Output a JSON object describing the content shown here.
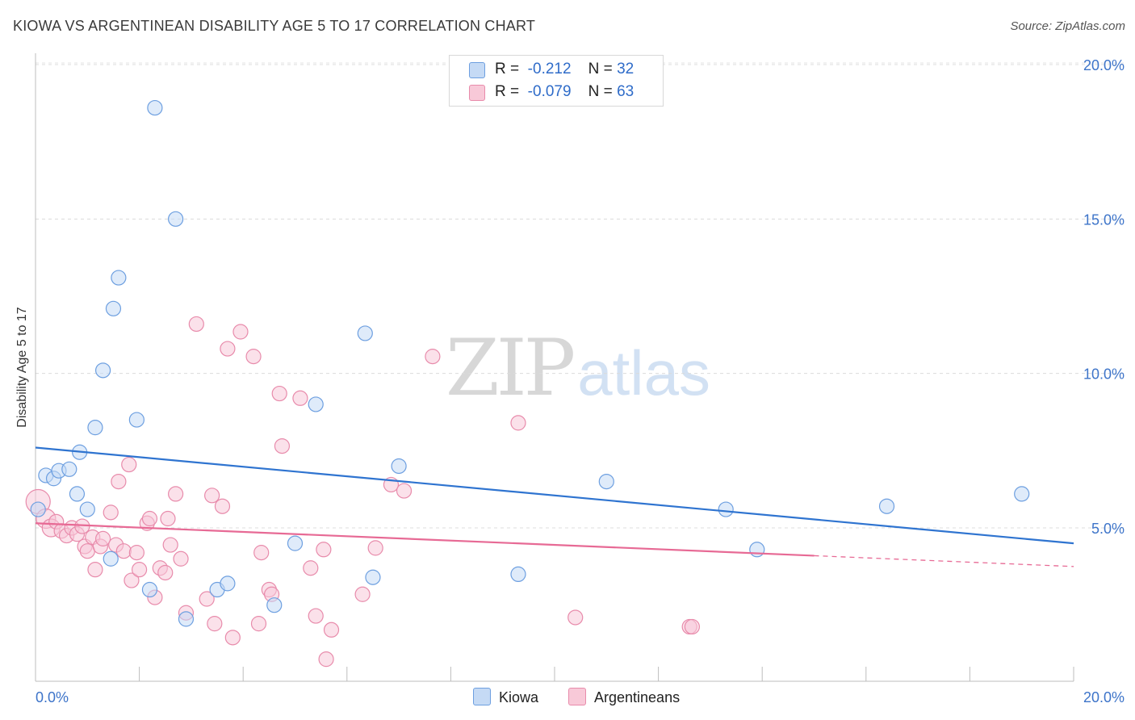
{
  "chart_data": {
    "type": "scatter",
    "title": "KIOWA VS ARGENTINEAN DISABILITY AGE 5 TO 17 CORRELATION CHART",
    "source": "Source: ZipAtlas.com",
    "ylabel": "Disability Age 5 to 17",
    "xlabel": "",
    "xlim": [
      0,
      20
    ],
    "ylim": [
      0,
      20.5
    ],
    "x_tick_labels": [
      "0.0%",
      "20.0%"
    ],
    "y_tick_labels": [
      {
        "value": 5,
        "label": "5.0%"
      },
      {
        "value": 10,
        "label": "10.0%"
      },
      {
        "value": 15,
        "label": "15.0%"
      },
      {
        "value": 20,
        "label": "20.0%"
      }
    ],
    "watermark": {
      "zip": "ZIP",
      "atlas": "atlas"
    },
    "legend": [
      {
        "r_label": "R =",
        "r_value": "-0.212",
        "n_label": "N =",
        "n_value": "32"
      },
      {
        "r_label": "R =",
        "r_value": "-0.079",
        "n_label": "N =",
        "n_value": "63"
      }
    ],
    "series": [
      {
        "name": "Kiowa",
        "color": "#6d9fe0",
        "fill": "#c5daf5",
        "line_color": "#2f74d0",
        "trend": {
          "x0": 0,
          "y0": 7.6,
          "x1": 20,
          "y1": 4.5,
          "solid_until": 20
        },
        "points": [
          [
            0.05,
            5.6,
            9
          ],
          [
            0.2,
            6.7,
            9
          ],
          [
            0.35,
            6.6,
            9
          ],
          [
            0.45,
            6.85,
            9
          ],
          [
            0.65,
            6.9,
            9
          ],
          [
            0.8,
            6.1,
            9
          ],
          [
            0.85,
            7.45,
            9
          ],
          [
            1.0,
            5.6,
            9
          ],
          [
            1.15,
            8.25,
            9
          ],
          [
            1.3,
            10.1,
            9
          ],
          [
            1.45,
            4.0,
            9
          ],
          [
            1.5,
            12.1,
            9
          ],
          [
            1.6,
            13.1,
            9
          ],
          [
            1.95,
            8.5,
            9
          ],
          [
            2.2,
            3.0,
            9
          ],
          [
            2.3,
            18.6,
            9
          ],
          [
            2.7,
            15.0,
            9
          ],
          [
            2.9,
            2.05,
            9
          ],
          [
            3.5,
            3.0,
            9
          ],
          [
            3.7,
            3.2,
            9
          ],
          [
            4.6,
            2.5,
            9
          ],
          [
            5.0,
            4.5,
            9
          ],
          [
            5.4,
            9.0,
            9
          ],
          [
            6.35,
            11.3,
            9
          ],
          [
            6.5,
            3.4,
            9
          ],
          [
            7.0,
            7.0,
            9
          ],
          [
            9.3,
            3.5,
            9
          ],
          [
            11.0,
            6.5,
            9
          ],
          [
            13.3,
            5.6,
            9
          ],
          [
            13.9,
            4.3,
            9
          ],
          [
            16.4,
            5.7,
            9
          ],
          [
            19.0,
            6.1,
            9
          ]
        ]
      },
      {
        "name": "Argentineans",
        "color": "#e88bab",
        "fill": "#f8c9d8",
        "line_color": "#e76a95",
        "trend": {
          "x0": 0,
          "y0": 5.15,
          "x1": 20,
          "y1": 3.75,
          "solid_until": 15
        },
        "points": [
          [
            0.05,
            5.85,
            15
          ],
          [
            0.2,
            5.3,
            12
          ],
          [
            0.3,
            5.0,
            11
          ],
          [
            0.4,
            5.2,
            9
          ],
          [
            0.5,
            4.9,
            9
          ],
          [
            0.6,
            4.75,
            9
          ],
          [
            0.7,
            5.0,
            9
          ],
          [
            0.8,
            4.8,
            9
          ],
          [
            0.9,
            5.05,
            9
          ],
          [
            0.95,
            4.4,
            9
          ],
          [
            1.0,
            4.25,
            9
          ],
          [
            1.1,
            4.7,
            9
          ],
          [
            1.15,
            3.65,
            9
          ],
          [
            1.25,
            4.4,
            9
          ],
          [
            1.3,
            4.65,
            9
          ],
          [
            1.45,
            5.5,
            9
          ],
          [
            1.55,
            4.45,
            9
          ],
          [
            1.6,
            6.5,
            9
          ],
          [
            1.7,
            4.25,
            9
          ],
          [
            1.8,
            7.05,
            9
          ],
          [
            1.85,
            3.3,
            9
          ],
          [
            1.95,
            4.2,
            9
          ],
          [
            2.0,
            3.65,
            9
          ],
          [
            2.15,
            5.15,
            9
          ],
          [
            2.2,
            5.3,
            9
          ],
          [
            2.3,
            2.75,
            9
          ],
          [
            2.4,
            3.7,
            9
          ],
          [
            2.5,
            3.55,
            9
          ],
          [
            2.55,
            5.3,
            9
          ],
          [
            2.6,
            4.45,
            9
          ],
          [
            2.7,
            6.1,
            9
          ],
          [
            2.8,
            4.0,
            9
          ],
          [
            2.9,
            2.25,
            9
          ],
          [
            3.1,
            11.6,
            9
          ],
          [
            3.3,
            2.7,
            9
          ],
          [
            3.4,
            6.05,
            9
          ],
          [
            3.45,
            1.9,
            9
          ],
          [
            3.6,
            5.7,
            9
          ],
          [
            3.7,
            10.8,
            9
          ],
          [
            3.8,
            1.45,
            9
          ],
          [
            3.95,
            11.35,
            9
          ],
          [
            4.2,
            10.55,
            9
          ],
          [
            4.3,
            1.9,
            9
          ],
          [
            4.35,
            4.2,
            9
          ],
          [
            4.5,
            3.0,
            9
          ],
          [
            4.55,
            2.85,
            9
          ],
          [
            4.7,
            9.35,
            9
          ],
          [
            4.75,
            7.65,
            9
          ],
          [
            5.1,
            9.2,
            9
          ],
          [
            5.3,
            3.7,
            9
          ],
          [
            5.4,
            2.15,
            9
          ],
          [
            5.55,
            4.3,
            9
          ],
          [
            5.6,
            0.75,
            9
          ],
          [
            5.7,
            1.7,
            9
          ],
          [
            6.3,
            2.85,
            9
          ],
          [
            6.55,
            4.35,
            9
          ],
          [
            6.85,
            6.4,
            9
          ],
          [
            7.1,
            6.2,
            9
          ],
          [
            7.65,
            10.55,
            9
          ],
          [
            9.3,
            8.4,
            9
          ],
          [
            10.4,
            2.1,
            9
          ],
          [
            12.6,
            1.8,
            9
          ],
          [
            12.65,
            1.8,
            9
          ]
        ]
      }
    ]
  }
}
